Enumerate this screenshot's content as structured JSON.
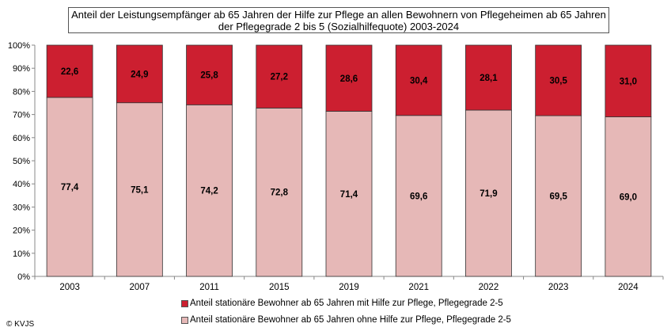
{
  "chart_data": {
    "type": "bar",
    "stacked": true,
    "title": "Anteil der Leistungsempfänger ab 65 Jahren der Hilfe zur Pflege an allen Bewohnern von Pflegeheimen ab 65 Jahren der Pflegegrade 2 bis 5 (Sozialhilfequote) 2003-2024",
    "categories": [
      "2003",
      "2007",
      "2011",
      "2015",
      "2019",
      "2021",
      "2022",
      "2023",
      "2024"
    ],
    "series": [
      {
        "name": "Anteil stationäre Bewohner ab 65 Jahren ohne Hilfe zur Pflege, Pflegegrade 2-5",
        "color": "#e6b8b7",
        "values": [
          77.4,
          75.1,
          74.2,
          72.8,
          71.4,
          69.6,
          71.9,
          69.5,
          69.0
        ]
      },
      {
        "name": "Anteil stationäre Bewohner ab 65 Jahren mit Hilfe zur Pflege, Pflegegrade 2-5",
        "color": "#cc1f30",
        "values": [
          22.6,
          24.9,
          25.8,
          27.2,
          28.6,
          30.4,
          28.1,
          30.5,
          31.0
        ]
      }
    ],
    "ylim": [
      0,
      100
    ],
    "yticks": [
      "0%",
      "10%",
      "20%",
      "30%",
      "40%",
      "50%",
      "60%",
      "70%",
      "80%",
      "90%",
      "100%"
    ],
    "grid": false,
    "legend": "bottom"
  },
  "copyright": "© KVJS"
}
